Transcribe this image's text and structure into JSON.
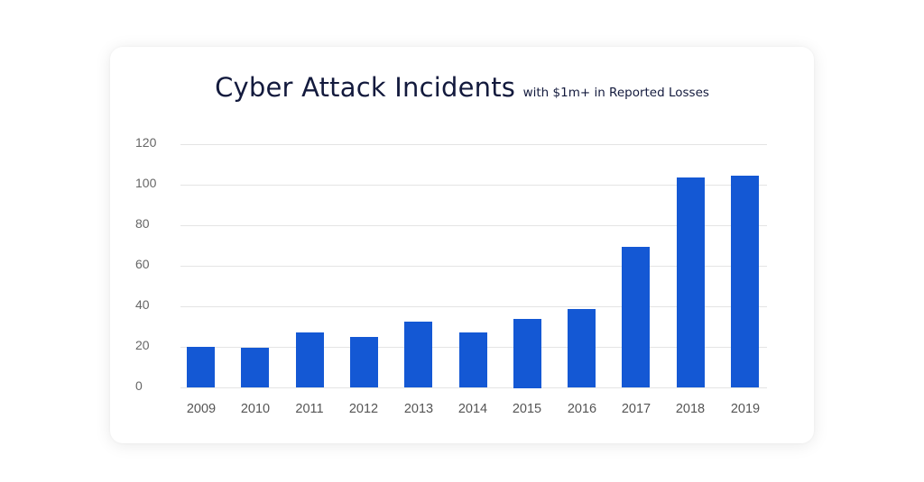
{
  "title": {
    "main": "Cyber Attack Incidents",
    "subtitle": "with $1m+ in Reported Losses"
  },
  "colors": {
    "bar": "#1458d4",
    "title": "#131a3d",
    "grid": "#e4e4e4",
    "tick_text": "#666666"
  },
  "chart_data": {
    "type": "bar",
    "title": "Cyber Attack Incidents",
    "subtitle": "with $1m+ in Reported Losses",
    "xlabel": "",
    "ylabel": "",
    "categories": [
      "2009",
      "2010",
      "2011",
      "2012",
      "2013",
      "2014",
      "2015",
      "2016",
      "2017",
      "2018",
      "2019"
    ],
    "values": [
      20,
      19.5,
      27,
      25,
      32.5,
      27,
      34,
      38.5,
      69.5,
      103.5,
      104.5
    ],
    "ylim": [
      0,
      120
    ],
    "yticks": [
      0,
      20,
      40,
      60,
      80,
      100,
      120
    ],
    "grid": true,
    "legend": null
  }
}
